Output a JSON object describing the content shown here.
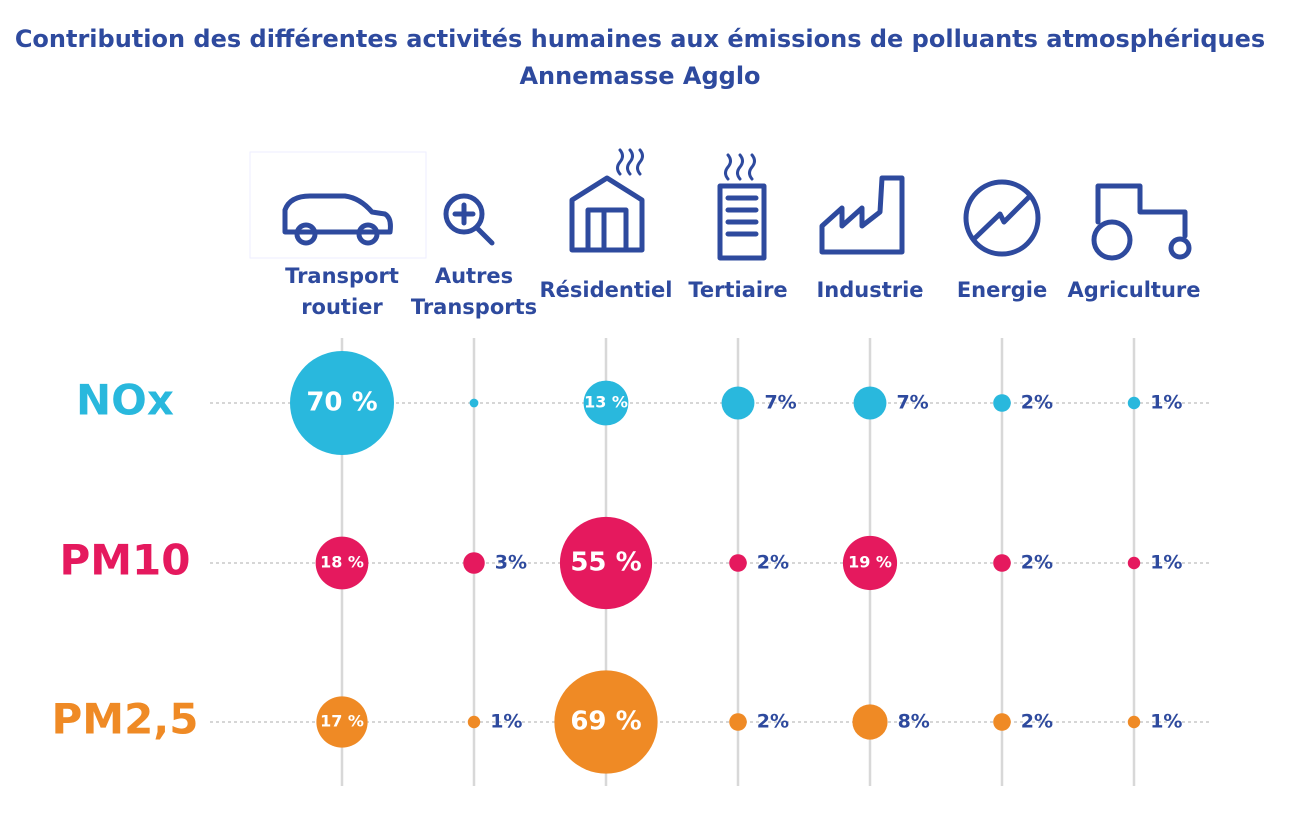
{
  "chart_data": {
    "type": "bubble",
    "title": "Contribution des différentes activités humaines aux émissions de polluants atmosphériques",
    "subtitle": "Annemasse Agglo",
    "categories": [
      "Transport routier",
      "Autres Transports",
      "Résidentiel",
      "Tertiaire",
      "Industrie",
      "Energie",
      "Agriculture"
    ],
    "series": [
      {
        "name": "NOx",
        "color": "#29b8dd",
        "values": [
          70,
          0.5,
          13,
          7,
          7,
          2,
          1
        ],
        "value_labels": [
          "70 %",
          null,
          "13 %",
          "7%",
          "7%",
          "2%",
          "1%"
        ]
      },
      {
        "name": "PM10",
        "color": "#e5195e",
        "values": [
          18,
          3,
          55,
          2,
          19,
          2,
          1
        ],
        "value_labels": [
          "18 %",
          "3%",
          "55 %",
          "2%",
          "19 %",
          "2%",
          "1%"
        ]
      },
      {
        "name": "PM2,5",
        "color": "#ef8a25",
        "values": [
          17,
          1,
          69,
          2,
          8,
          2,
          1
        ],
        "value_labels": [
          "17 %",
          "1%",
          "69 %",
          "2%",
          "8%",
          "2%",
          "1%"
        ]
      }
    ]
  }
}
